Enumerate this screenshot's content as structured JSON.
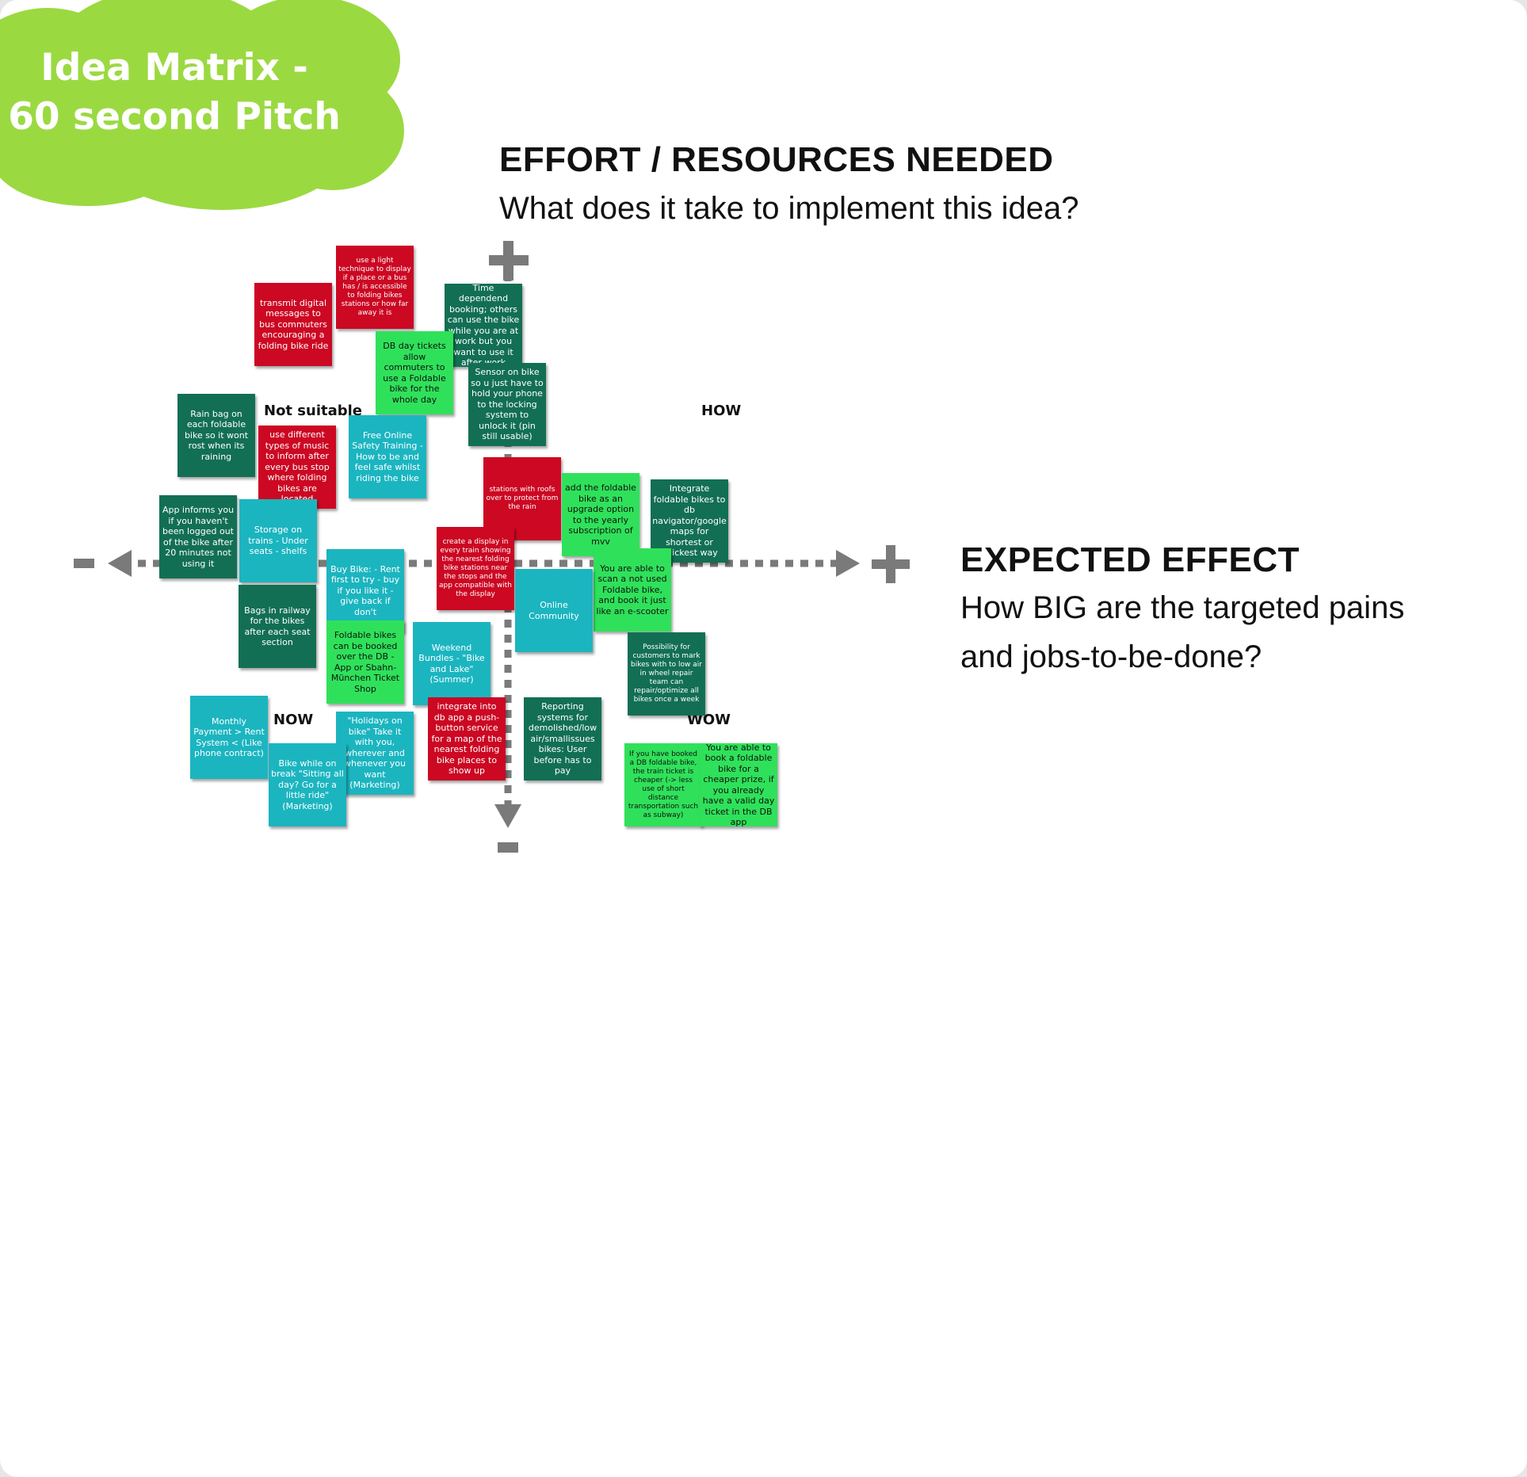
{
  "title": "Idea Matrix - 60 second Pitch",
  "title_lines": [
    "Idea Matrix -",
    "60 second Pitch"
  ],
  "colors": {
    "cloud": "#9bd941",
    "red": "#cc0823",
    "dark_green": "#126f54",
    "light_green": "#2fe15a",
    "teal": "#1bb5c0",
    "axis": "#7a7a7a"
  },
  "y_axis": {
    "heading": "EFFORT / RESOURCES NEEDED",
    "question": "What does it take to implement this idea?",
    "plus": "+",
    "minus": "-"
  },
  "x_axis": {
    "heading": "EXPECTED EFFECT",
    "question_line1": "How BIG are the targeted pains",
    "question_line2": "and jobs-to-be-done?",
    "plus": "+",
    "minus": "-"
  },
  "quadrants": {
    "top_left": "Not suitable",
    "top_right": "HOW",
    "bottom_left": "NOW",
    "bottom_right": "WOW"
  },
  "notes": [
    {
      "text": "transmit digital messages to bus commuters encouraging a folding bike ride",
      "color": "red"
    },
    {
      "text": "use a light technique to display if a place or a bus has / is accessible to folding bikes stations or how far away it is",
      "color": "red"
    },
    {
      "text": "Time dependend booking; others can use the bike while you are at work but you want to use it after work",
      "color": "dgreen"
    },
    {
      "text": "DB day tickets allow commuters to use a Foldable bike for the whole day",
      "color": "lgreen"
    },
    {
      "text": "Sensor on bike so u just have to hold your phone to the locking system to unlock it (pin still usable)",
      "color": "dgreen"
    },
    {
      "text": "Rain bag on each foldable bike so it wont rost when its raining",
      "color": "dgreen"
    },
    {
      "text": "use different types of music to inform after every bus stop where folding bikes are located",
      "color": "red"
    },
    {
      "text": "Free Online Safety Training - How to be and feel safe whilst riding the bike",
      "color": "teal"
    },
    {
      "text": "stations with roofs over to protect from the rain",
      "color": "red"
    },
    {
      "text": "add the foldable bike as an upgrade option to the yearly subscription of mvv",
      "color": "lgreen"
    },
    {
      "text": "Integrate foldable bikes to db navigator/google maps for shortest or quickest way",
      "color": "dgreen"
    },
    {
      "text": "App informs you if you haven't been logged out of the bike after 20 minutes not using it",
      "color": "dgreen"
    },
    {
      "text": "Storage on trains - Under seats - shelfs",
      "color": "teal"
    },
    {
      "text": "Buy Bike: - Rent first to try - buy if you like it - give back if don't",
      "color": "teal"
    },
    {
      "text": "create a display in every train showing the nearest folding bike stations near the stops and the app compatible with the display",
      "color": "red"
    },
    {
      "text": "You are able to scan a not used Foldable bike, and book it just like an e-scooter",
      "color": "lgreen"
    },
    {
      "text": "Online Community",
      "color": "teal"
    },
    {
      "text": "Bags in railway for the bikes after each seat section",
      "color": "dgreen"
    },
    {
      "text": "Foldable bikes can be booked over the DB - App or Sbahn-München Ticket Shop",
      "color": "lgreen"
    },
    {
      "text": "Weekend Bundles - \"Bike and Lake\" (Summer)",
      "color": "teal"
    },
    {
      "text": "Possibility for customers to mark bikes with to low air in wheel  repair team can repair/optimize all bikes once a week",
      "color": "dgreen"
    },
    {
      "text": "Monthly Payment > Rent System < (Like phone contract)",
      "color": "teal"
    },
    {
      "text": "\"Holidays on bike\" Take it with you, wherever and whenever you want (Marketing)",
      "color": "teal"
    },
    {
      "text": "integrate into db app a push-button service for a map of the nearest folding bike places to show up",
      "color": "red"
    },
    {
      "text": "Reporting systems for demolished/low air/smallissues bikes: User before has to pay",
      "color": "dgreen"
    },
    {
      "text": "Bike while on break \"Sitting all day? Go for a little ride\" (Marketing)",
      "color": "teal"
    },
    {
      "text": "If you have booked a DB foldable bike, the train ticket is cheaper (-> less use of short distance transportation such as subway)",
      "color": "lgreen"
    },
    {
      "text": "You are able to book a foldable bike for a cheaper prize, if you already have a valid day ticket in the DB app",
      "color": "lgreen"
    }
  ]
}
